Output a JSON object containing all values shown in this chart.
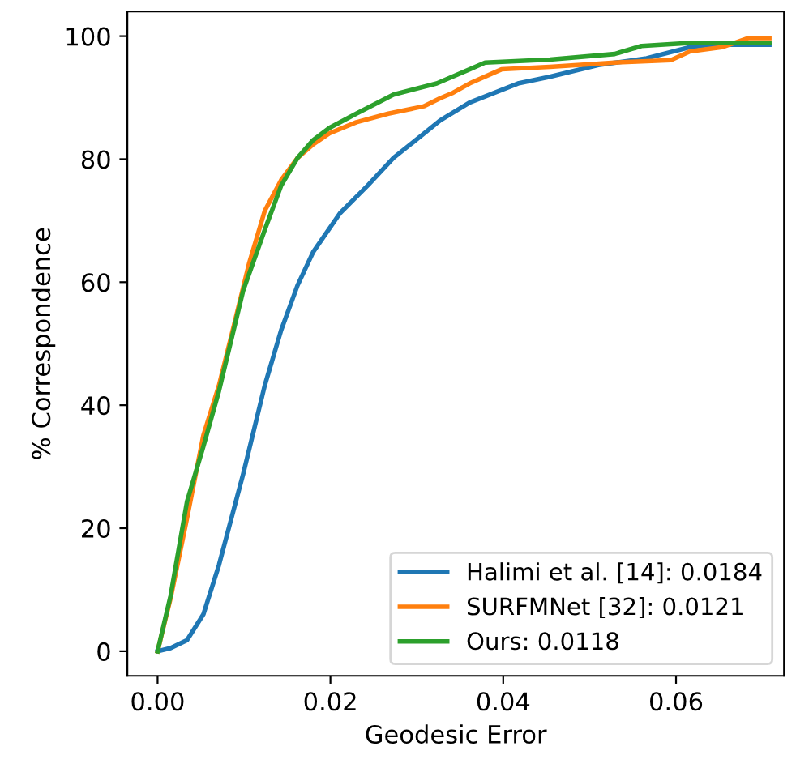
{
  "chart_data": {
    "type": "line",
    "xlabel": "Geodesic Error",
    "ylabel": "% Correspondence",
    "xlim": [
      -0.0035,
      0.0725
    ],
    "ylim": [
      -4,
      104
    ],
    "xticks": [
      {
        "value": 0,
        "label": "0.00"
      },
      {
        "value": 0.02,
        "label": "0.02"
      },
      {
        "value": 0.04,
        "label": "0.04"
      },
      {
        "value": 0.06,
        "label": "0.06"
      }
    ],
    "yticks": [
      0,
      20,
      40,
      60,
      80,
      100
    ],
    "grid": false,
    "legend": "bottom right",
    "line_style": "solid",
    "marker": "none",
    "series": [
      {
        "name": "Halimi et al. [14]: 0.0184",
        "color": "#1f77b4",
        "x": [
          0,
          0.0015,
          0.0034,
          0.0053,
          0.0071,
          0.0099,
          0.0124,
          0.0143,
          0.0162,
          0.018,
          0.0211,
          0.0243,
          0.0273,
          0.0305,
          0.0327,
          0.0361,
          0.0417,
          0.0454,
          0.051,
          0.0566,
          0.0616,
          0.064,
          0.0708
        ],
        "values": [
          0,
          0.5,
          1.8,
          6,
          14,
          28.8,
          43.2,
          52.2,
          59.5,
          64.9,
          71.2,
          75.7,
          80.2,
          83.8,
          86.3,
          89.2,
          92.3,
          93.4,
          95.3,
          96.4,
          98.2,
          98.6,
          98.6
        ]
      },
      {
        "name": "SURFMNet [32]: 0.0121",
        "color": "#ff7f0e",
        "x": [
          0,
          0.0015,
          0.0034,
          0.0053,
          0.0071,
          0.0087,
          0.0106,
          0.0124,
          0.0143,
          0.0162,
          0.018,
          0.0199,
          0.023,
          0.0267,
          0.0308,
          0.0327,
          0.0342,
          0.0361,
          0.0398,
          0.0454,
          0.0529,
          0.0594,
          0.0616,
          0.0653,
          0.0684,
          0.0708
        ],
        "values": [
          0,
          8.6,
          21.6,
          35.1,
          43.2,
          52.2,
          63.1,
          71.6,
          76.6,
          80.2,
          82.4,
          84.2,
          86,
          87.4,
          88.6,
          89.9,
          90.8,
          92.3,
          94.6,
          95,
          95.7,
          96.1,
          97.5,
          98.2,
          99.7,
          99.7
        ]
      },
      {
        "name": "Ours: 0.0118",
        "color": "#2ca02c",
        "x": [
          0,
          0.0015,
          0.0034,
          0.0053,
          0.0071,
          0.0099,
          0.0124,
          0.0143,
          0.0162,
          0.018,
          0.0199,
          0.023,
          0.0273,
          0.0323,
          0.0361,
          0.0379,
          0.0454,
          0.0529,
          0.056,
          0.0616,
          0.0708
        ],
        "values": [
          0,
          9,
          24.3,
          33.3,
          42.3,
          58.6,
          68.5,
          75.7,
          80.2,
          83.1,
          85.1,
          87.4,
          90.5,
          92.3,
          94.6,
          95.7,
          96.2,
          97.1,
          98.4,
          98.9,
          98.9
        ]
      }
    ]
  }
}
